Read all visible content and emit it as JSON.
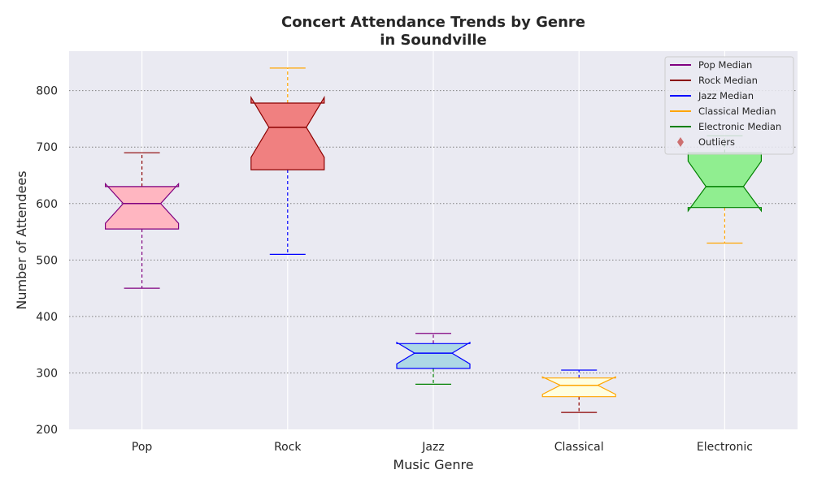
{
  "chart_data": {
    "type": "boxplot",
    "title_lines": [
      "Concert Attendance Trends by Genre",
      "in Soundville"
    ],
    "xlabel": "Music Genre",
    "ylabel": "Number of Attendees",
    "ylim": [
      200,
      870
    ],
    "yticks": [
      200,
      300,
      400,
      500,
      600,
      700,
      800
    ],
    "grid": {
      "y": true,
      "x": true
    },
    "notched": true,
    "legend_position": "top-right",
    "categories": [
      "Pop",
      "Rock",
      "Jazz",
      "Classical",
      "Electronic"
    ],
    "series": [
      {
        "name": "Pop",
        "whisker_low": 450,
        "q1": 555,
        "median": 600,
        "q3": 630,
        "whisker_high": 690,
        "notch_low": 565,
        "notch_high": 635,
        "box_fill": "#ffb6c1",
        "box_edge": "#800080",
        "median_color": "#800080",
        "whisker_low_color": "#800080",
        "whisker_high_color": "#8b0000"
      },
      {
        "name": "Rock",
        "whisker_low": 510,
        "q1": 660,
        "median": 735,
        "q3": 778,
        "whisker_high": 840,
        "notch_low": 682,
        "notch_high": 788,
        "box_fill": "#f08080",
        "box_edge": "#8b0000",
        "median_color": "#8b0000",
        "whisker_low_color": "#0000ff",
        "whisker_high_color": "#ffa500"
      },
      {
        "name": "Jazz",
        "whisker_low": 280,
        "q1": 308,
        "median": 335,
        "q3": 352,
        "whisker_high": 370,
        "notch_low": 316,
        "notch_high": 354,
        "box_fill": "#add8e6",
        "box_edge": "#0000ff",
        "median_color": "#0000ff",
        "whisker_low_color": "#008000",
        "whisker_high_color": "#800080"
      },
      {
        "name": "Classical",
        "whisker_low": 230,
        "q1": 258,
        "median": 278,
        "q3": 291,
        "whisker_high": 305,
        "notch_low": 262,
        "notch_high": 293,
        "box_fill": "#ffffe0",
        "box_edge": "#ffa500",
        "median_color": "#ffa500",
        "whisker_low_color": "#8b0000",
        "whisker_high_color": "#0000ff"
      },
      {
        "name": "Electronic",
        "whisker_low": 530,
        "q1": 593,
        "median": 630,
        "q3": 690,
        "whisker_high": 720,
        "notch_low": 587,
        "notch_high": 675,
        "box_fill": "#90ee90",
        "box_edge": "#008000",
        "median_color": "#008000",
        "whisker_low_color": "#ffa500",
        "whisker_high_color": "#008000"
      }
    ],
    "legend": [
      {
        "label": "Pop Median",
        "kind": "line",
        "color": "#800080"
      },
      {
        "label": "Rock Median",
        "kind": "line",
        "color": "#8b0000"
      },
      {
        "label": "Jazz Median",
        "kind": "line",
        "color": "#0000ff"
      },
      {
        "label": "Classical Median",
        "kind": "line",
        "color": "#ffa500"
      },
      {
        "label": "Electronic Median",
        "kind": "line",
        "color": "#008000"
      },
      {
        "label": "Outliers",
        "kind": "diamond",
        "color": "#cd7070"
      }
    ]
  },
  "colors": {
    "plot_background": "#eaeaf2",
    "grid_horizontal": "#808080",
    "grid_vertical": "#ffffff"
  }
}
